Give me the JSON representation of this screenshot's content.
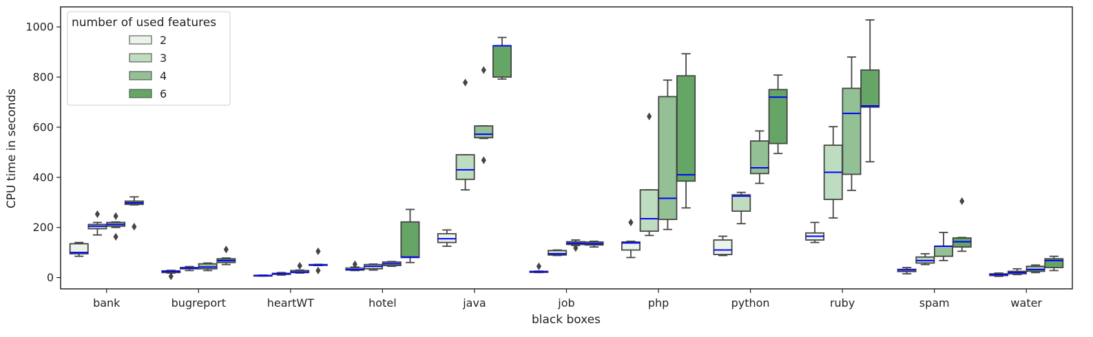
{
  "chart_data": {
    "type": "box",
    "xlabel": "black boxes",
    "ylabel": "CPU time in seconds",
    "ylim": [
      -45,
      1080
    ],
    "yticks": [
      0,
      200,
      400,
      600,
      800,
      1000
    ],
    "categories": [
      "bank",
      "bugreport",
      "heartWT",
      "hotel",
      "java",
      "job",
      "php",
      "python",
      "ruby",
      "spam",
      "water"
    ],
    "legend": {
      "title": "number of used features",
      "position": "top-left",
      "entries": [
        "2",
        "3",
        "4",
        "6"
      ]
    },
    "colors": {
      "2": "#eaf4ea",
      "3": "#bedcbf",
      "4": "#93c195",
      "6": "#65a667",
      "median": "#0000ff",
      "box_edge": "#444444"
    },
    "series": [
      {
        "name": "2",
        "boxes": [
          {
            "min": 85,
            "q1": 95,
            "median": 100,
            "q3": 135,
            "max": 140,
            "outliers": []
          },
          {
            "min": 18,
            "q1": 20,
            "median": 24,
            "q3": 27,
            "max": 29,
            "outliers": [
              5
            ]
          },
          {
            "min": 6,
            "q1": 7,
            "median": 8,
            "q3": 9,
            "max": 10,
            "outliers": []
          },
          {
            "min": 28,
            "q1": 30,
            "median": 32,
            "q3": 38,
            "max": 42,
            "outliers": [
              53
            ]
          },
          {
            "min": 125,
            "q1": 140,
            "median": 155,
            "q3": 175,
            "max": 190,
            "outliers": []
          },
          {
            "min": 20,
            "q1": 21,
            "median": 23,
            "q3": 25,
            "max": 26,
            "outliers": [
              45
            ]
          },
          {
            "min": 80,
            "q1": 110,
            "median": 138,
            "q3": 142,
            "max": 145,
            "outliers": [
              220
            ]
          },
          {
            "min": 88,
            "q1": 92,
            "median": 110,
            "q3": 150,
            "max": 165,
            "outliers": []
          },
          {
            "min": 140,
            "q1": 150,
            "median": 165,
            "q3": 178,
            "max": 220,
            "outliers": []
          },
          {
            "min": 15,
            "q1": 24,
            "median": 30,
            "q3": 33,
            "max": 40,
            "outliers": []
          },
          {
            "min": 5,
            "q1": 8,
            "median": 12,
            "q3": 15,
            "max": 18,
            "outliers": []
          }
        ]
      },
      {
        "name": "3",
        "boxes": [
          {
            "min": 170,
            "q1": 195,
            "median": 205,
            "q3": 212,
            "max": 220,
            "outliers": [
              253
            ]
          },
          {
            "min": 28,
            "q1": 35,
            "median": 38,
            "q3": 40,
            "max": 44,
            "outliers": []
          },
          {
            "min": 10,
            "q1": 13,
            "median": 15,
            "q3": 17,
            "max": 20,
            "outliers": []
          },
          {
            "min": 30,
            "q1": 35,
            "median": 45,
            "q3": 52,
            "max": 54,
            "outliers": []
          },
          {
            "min": 350,
            "q1": 392,
            "median": 430,
            "q3": 490,
            "max": 490,
            "outliers": [
              778
            ]
          },
          {
            "min": 88,
            "q1": 90,
            "median": 95,
            "q3": 108,
            "max": 110,
            "outliers": []
          },
          {
            "min": 168,
            "q1": 185,
            "median": 235,
            "q3": 350,
            "max": 350,
            "outliers": [
              643
            ]
          },
          {
            "min": 215,
            "q1": 265,
            "median": 325,
            "q3": 330,
            "max": 340,
            "outliers": []
          },
          {
            "min": 238,
            "q1": 312,
            "median": 420,
            "q3": 528,
            "max": 602,
            "outliers": []
          },
          {
            "min": 52,
            "q1": 58,
            "median": 68,
            "q3": 82,
            "max": 95,
            "outliers": []
          },
          {
            "min": 12,
            "q1": 15,
            "median": 20,
            "q3": 25,
            "max": 35,
            "outliers": []
          }
        ]
      },
      {
        "name": "4",
        "boxes": [
          {
            "min": 200,
            "q1": 205,
            "median": 212,
            "q3": 220,
            "max": 222,
            "outliers": [
              245,
              163
            ]
          },
          {
            "min": 28,
            "q1": 35,
            "median": 42,
            "q3": 55,
            "max": 58,
            "outliers": []
          },
          {
            "min": 18,
            "q1": 20,
            "median": 22,
            "q3": 28,
            "max": 30,
            "outliers": [
              47
            ]
          },
          {
            "min": 45,
            "q1": 48,
            "median": 55,
            "q3": 62,
            "max": 64,
            "outliers": []
          },
          {
            "min": 555,
            "q1": 558,
            "median": 572,
            "q3": 605,
            "max": 605,
            "outliers": [
              828,
              468
            ]
          },
          {
            "min": 128,
            "q1": 132,
            "median": 137,
            "q3": 143,
            "max": 150,
            "outliers": [
              118
            ]
          },
          {
            "min": 192,
            "q1": 232,
            "median": 316,
            "q3": 722,
            "max": 788,
            "outliers": []
          },
          {
            "min": 376,
            "q1": 415,
            "median": 438,
            "q3": 545,
            "max": 585,
            "outliers": []
          },
          {
            "min": 348,
            "q1": 412,
            "median": 655,
            "q3": 755,
            "max": 880,
            "outliers": []
          },
          {
            "min": 68,
            "q1": 85,
            "median": 125,
            "q3": 125,
            "max": 180,
            "outliers": []
          },
          {
            "min": 20,
            "q1": 25,
            "median": 32,
            "q3": 45,
            "max": 50,
            "outliers": []
          }
        ]
      },
      {
        "name": "6",
        "boxes": [
          {
            "min": 290,
            "q1": 292,
            "median": 298,
            "q3": 305,
            "max": 322,
            "outliers": [
              203
            ]
          },
          {
            "min": 52,
            "q1": 60,
            "median": 68,
            "q3": 75,
            "max": 78,
            "outliers": [
              112
            ]
          },
          {
            "min": 48,
            "q1": 49,
            "median": 50,
            "q3": 52,
            "max": 53,
            "outliers": [
              105,
              28
            ]
          },
          {
            "min": 60,
            "q1": 80,
            "median": 82,
            "q3": 222,
            "max": 272,
            "outliers": []
          },
          {
            "min": 792,
            "q1": 800,
            "median": 925,
            "q3": 925,
            "max": 958,
            "outliers": []
          },
          {
            "min": 122,
            "q1": 130,
            "median": 135,
            "q3": 142,
            "max": 145,
            "outliers": []
          },
          {
            "min": 278,
            "q1": 385,
            "median": 410,
            "q3": 805,
            "max": 893,
            "outliers": []
          },
          {
            "min": 495,
            "q1": 535,
            "median": 720,
            "q3": 750,
            "max": 808,
            "outliers": []
          },
          {
            "min": 462,
            "q1": 680,
            "median": 685,
            "q3": 828,
            "max": 1028,
            "outliers": []
          },
          {
            "min": 105,
            "q1": 122,
            "median": 143,
            "q3": 158,
            "max": 160,
            "outliers": [
              305
            ]
          },
          {
            "min": 28,
            "q1": 40,
            "median": 68,
            "q3": 75,
            "max": 85,
            "outliers": []
          }
        ]
      }
    ]
  }
}
